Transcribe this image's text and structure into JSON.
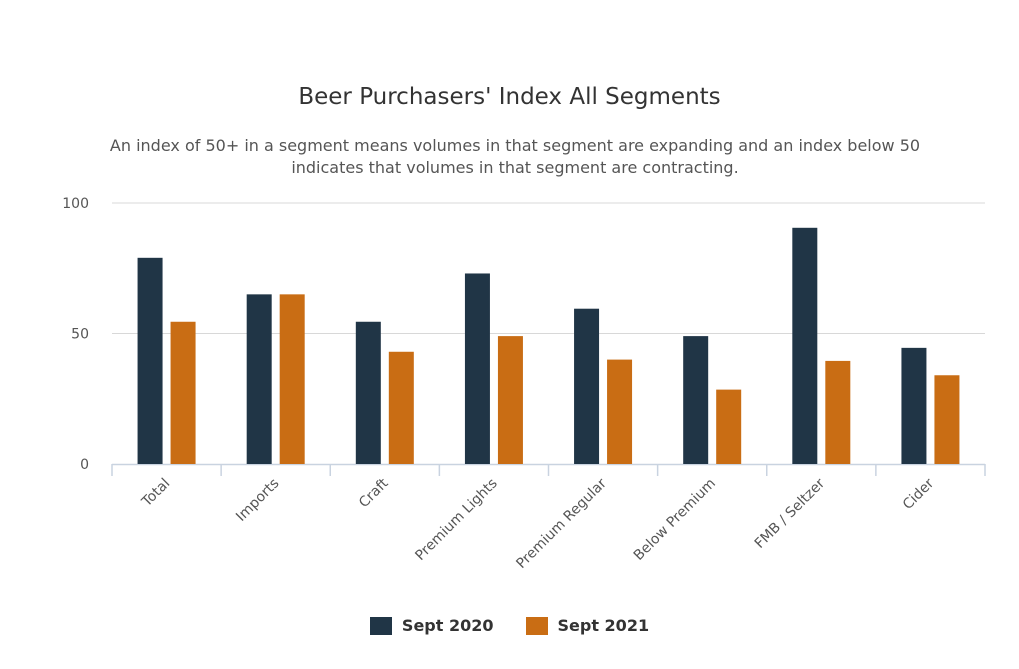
{
  "chart_data": {
    "type": "bar",
    "title": "Beer Purchasers' Index All Segments",
    "subtitle": "An index of 50+ in a segment means volumes in that segment are expanding and an index below 50 indicates that volumes in that segment are contracting.",
    "categories": [
      "Total",
      "Imports",
      "Craft",
      "Premium Lights",
      "Premium Regular",
      "Below Premium",
      "FMB / Seltzer",
      "Cider"
    ],
    "series": [
      {
        "name": "Sept 2020",
        "color": "#203546",
        "values": [
          79,
          65,
          54.5,
          73,
          59.5,
          49,
          90.5,
          44.5
        ]
      },
      {
        "name": "Sept 2021",
        "color": "#c96d14",
        "values": [
          54.5,
          65,
          43,
          49,
          40,
          28.5,
          39.5,
          34
        ]
      }
    ],
    "yticks": [
      0,
      50,
      100
    ],
    "ylim": [
      0,
      100
    ],
    "grid": true,
    "legend_position": "bottom-center"
  }
}
